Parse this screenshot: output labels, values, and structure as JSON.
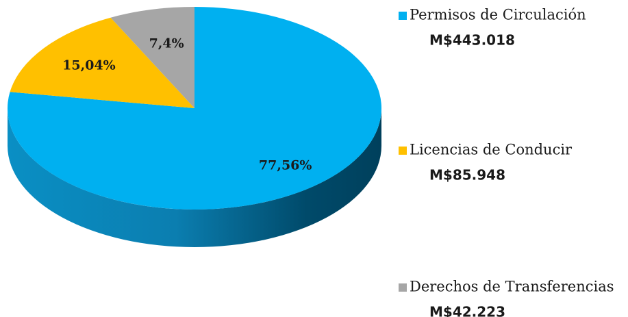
{
  "chart_data": {
    "type": "pie",
    "categories": [
      "Permisos de Circulación",
      "Licencias de Conducir",
      "Derechos de Transferencias"
    ],
    "values": [
      77.56,
      15.04,
      7.4
    ],
    "value_labels": [
      "77,56%",
      "15,04%",
      "7,4%"
    ],
    "amount_labels": [
      "M$443.018",
      "M$85.948",
      "M$42.223"
    ],
    "colors": [
      "#00b0f0",
      "#ffc000",
      "#a6a6a6"
    ],
    "legend": "right"
  }
}
